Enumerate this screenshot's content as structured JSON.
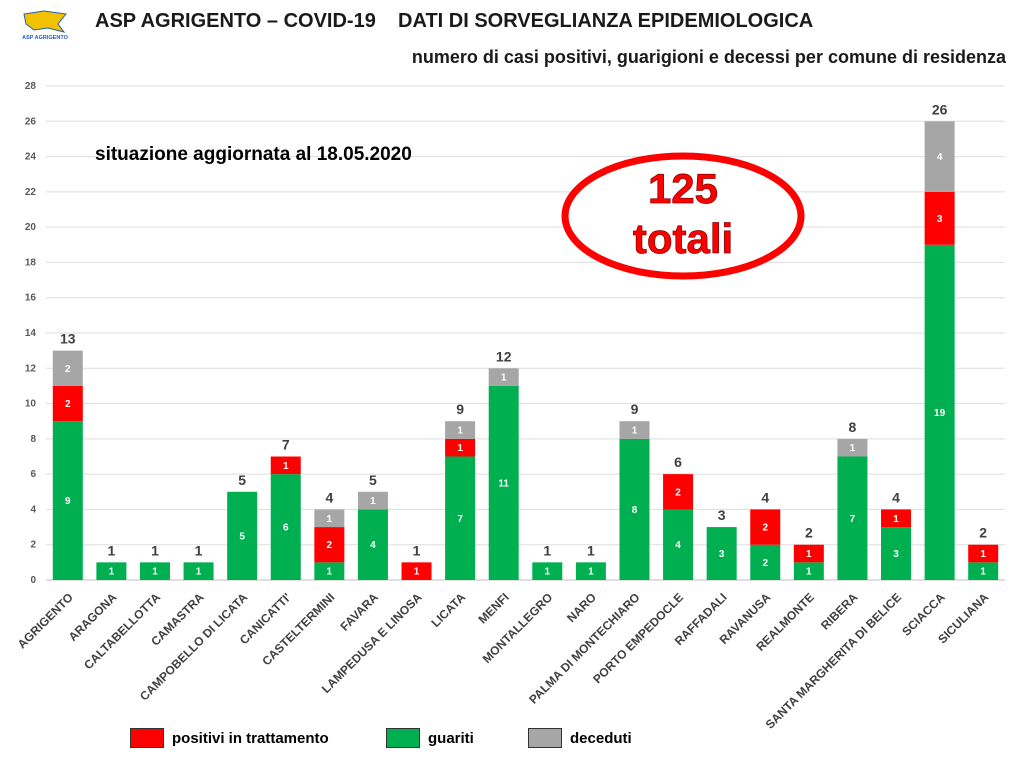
{
  "header": {
    "logo_text": "ASP AGRIGENTO",
    "title_line1": "ASP AGRIGENTO – COVID-19    DATI DI SORVEGLIANZA EPIDEMIOLOGICA",
    "title_line2": "numero di casi positivi, guarigioni e decessi per comune di residenza"
  },
  "colors": {
    "positivi": "#ff0000",
    "guariti": "#00b050",
    "deceduti": "#a6a6a6",
    "callout": "#ff0000"
  },
  "chart_data": {
    "type": "bar",
    "stacked": true,
    "annotation": "situazione aggiornata al 18.05.2020",
    "total_callout": {
      "value": "125",
      "label": "totali"
    },
    "categories": [
      "AGRIGENTO",
      "ARAGONA",
      "CALTABELLOTTA",
      "CAMASTRA",
      "CAMPOBELLO DI LICATA",
      "CANICATTI'",
      "CASTELTERMINI",
      "FAVARA",
      "LAMPEDUSA E LINOSA",
      "LICATA",
      "MENFI",
      "MONTALLEGRO",
      "NARO",
      "PALMA DI MONTECHIARO",
      "PORTO EMPEDOCLE",
      "RAFFADALI",
      "RAVANUSA",
      "REALMONTE",
      "RIBERA",
      "SANTA MARGHERITA DI BELICE",
      "SCIACCA",
      "SICULIANA"
    ],
    "series": [
      {
        "name": "guariti",
        "values": [
          9,
          1,
          1,
          1,
          5,
          6,
          1,
          4,
          0,
          7,
          11,
          1,
          1,
          8,
          4,
          3,
          2,
          1,
          7,
          3,
          19,
          1
        ]
      },
      {
        "name": "positivi in trattamento",
        "values": [
          2,
          0,
          0,
          0,
          0,
          1,
          2,
          0,
          1,
          1,
          0,
          0,
          0,
          0,
          2,
          0,
          2,
          1,
          0,
          1,
          3,
          1
        ]
      },
      {
        "name": "deceduti",
        "values": [
          2,
          0,
          0,
          0,
          0,
          0,
          1,
          1,
          0,
          1,
          1,
          0,
          0,
          1,
          0,
          0,
          0,
          0,
          1,
          0,
          4,
          0
        ]
      }
    ],
    "totals": [
      13,
      1,
      1,
      1,
      5,
      7,
      4,
      5,
      1,
      9,
      12,
      1,
      1,
      9,
      6,
      3,
      4,
      2,
      8,
      4,
      26,
      2
    ],
    "ylim": [
      0,
      28
    ],
    "yticks": [
      0,
      2,
      4,
      6,
      8,
      10,
      12,
      14,
      16,
      18,
      20,
      22,
      24,
      26,
      28
    ],
    "grid": true,
    "legend_position": "bottom"
  }
}
